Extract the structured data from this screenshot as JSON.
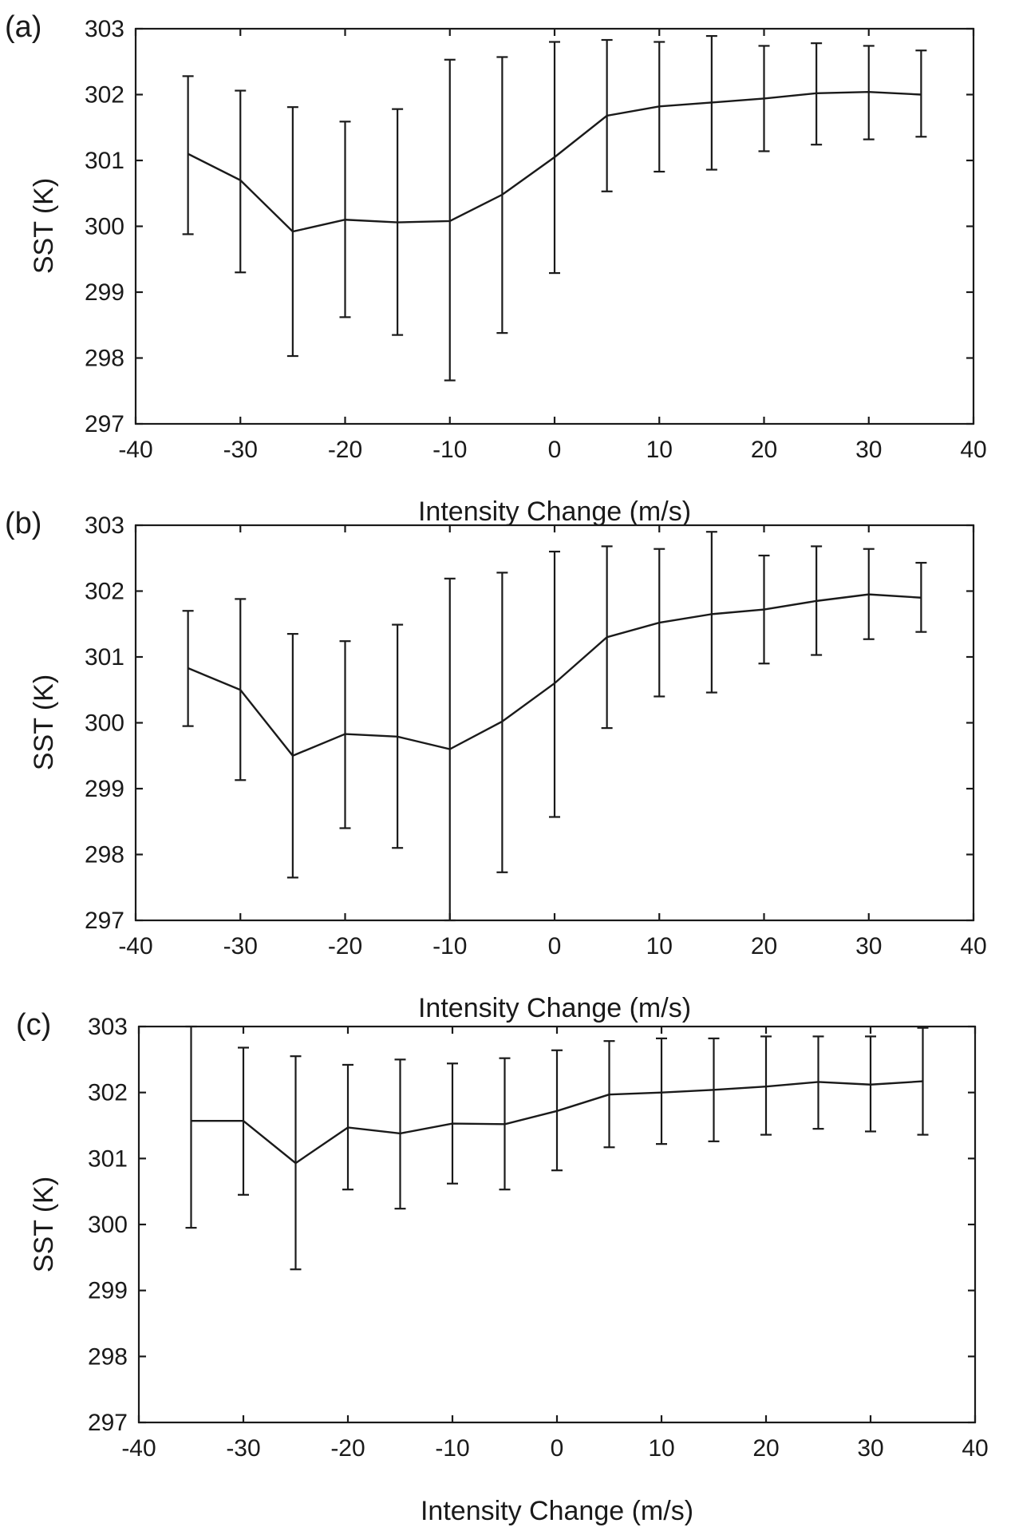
{
  "chart_data": [
    {
      "type": "line",
      "panel_label": "(a)",
      "xlabel": "Intensity Change (m/s)",
      "ylabel": "SST (K)",
      "xlim": [
        -40,
        40
      ],
      "ylim": [
        297,
        303
      ],
      "xticks": [
        -40,
        -30,
        -20,
        -10,
        0,
        10,
        20,
        30,
        40
      ],
      "yticks": [
        297,
        298,
        299,
        300,
        301,
        302,
        303
      ],
      "series": [
        {
          "x": [
            -35,
            -30,
            -25,
            -20,
            -15,
            -10,
            -5,
            0,
            5,
            10,
            15,
            20,
            25,
            30,
            35
          ],
          "y": [
            301.1,
            300.7,
            299.92,
            300.1,
            300.06,
            300.08,
            300.48,
            301.05,
            301.68,
            301.82,
            301.88,
            301.94,
            302.02,
            302.04,
            302.0
          ],
          "err_low": [
            299.88,
            299.3,
            298.03,
            298.62,
            298.35,
            297.66,
            298.38,
            299.29,
            300.53,
            300.83,
            300.86,
            301.14,
            301.24,
            301.32,
            301.36
          ],
          "err_high": [
            302.28,
            302.06,
            301.81,
            301.59,
            301.78,
            302.53,
            302.57,
            302.8,
            302.83,
            302.8,
            302.89,
            302.74,
            302.78,
            302.74,
            302.67
          ]
        }
      ],
      "grid": false,
      "colors": {
        "line": "#1a1a1a"
      }
    },
    {
      "type": "line",
      "panel_label": "(b)",
      "xlabel": "Intensity Change (m/s)",
      "ylabel": "SST (K)",
      "xlim": [
        -40,
        40
      ],
      "ylim": [
        297,
        303
      ],
      "xticks": [
        -40,
        -30,
        -20,
        -10,
        0,
        10,
        20,
        30,
        40
      ],
      "yticks": [
        297,
        298,
        299,
        300,
        301,
        302,
        303
      ],
      "series": [
        {
          "x": [
            -35,
            -30,
            -25,
            -20,
            -15,
            -10,
            -5,
            0,
            5,
            10,
            15,
            20,
            25,
            30,
            35
          ],
          "y": [
            300.83,
            300.5,
            299.5,
            299.83,
            299.79,
            299.6,
            300.02,
            300.6,
            301.3,
            301.52,
            301.65,
            301.72,
            301.85,
            301.95,
            301.9
          ],
          "err_low": [
            299.95,
            299.13,
            297.65,
            298.4,
            298.1,
            297.0,
            297.73,
            298.57,
            299.92,
            300.4,
            300.46,
            300.9,
            301.03,
            301.27,
            301.38
          ],
          "err_high": [
            301.7,
            301.88,
            301.35,
            301.24,
            301.49,
            302.19,
            302.28,
            302.6,
            302.68,
            302.64,
            302.9,
            302.54,
            302.68,
            302.64,
            302.43
          ]
        }
      ],
      "grid": false,
      "colors": {
        "line": "#1a1a1a"
      }
    },
    {
      "type": "line",
      "panel_label": "(c)",
      "xlabel": "Intensity Change (m/s)",
      "ylabel": "SST (K)",
      "xlim": [
        -40,
        40
      ],
      "ylim": [
        297,
        303
      ],
      "xticks": [
        -40,
        -30,
        -20,
        -10,
        0,
        10,
        20,
        30,
        40
      ],
      "yticks": [
        297,
        298,
        299,
        300,
        301,
        302,
        303
      ],
      "series": [
        {
          "x": [
            -35,
            -30,
            -25,
            -20,
            -15,
            -10,
            -5,
            0,
            5,
            10,
            15,
            20,
            25,
            30,
            35
          ],
          "y": [
            301.57,
            301.57,
            300.93,
            301.47,
            301.38,
            301.53,
            301.52,
            301.72,
            301.97,
            302.0,
            302.04,
            302.09,
            302.16,
            302.12,
            302.17
          ],
          "err_low": [
            299.95,
            300.45,
            299.32,
            300.53,
            300.24,
            300.62,
            300.53,
            300.82,
            301.17,
            301.22,
            301.26,
            301.36,
            301.45,
            301.41,
            301.36
          ],
          "err_high": [
            303.0,
            302.68,
            302.55,
            302.42,
            302.5,
            302.44,
            302.52,
            302.64,
            302.78,
            302.82,
            302.82,
            302.85,
            302.85,
            302.85,
            302.98
          ]
        }
      ],
      "grid": false,
      "colors": {
        "line": "#1a1a1a"
      }
    }
  ]
}
